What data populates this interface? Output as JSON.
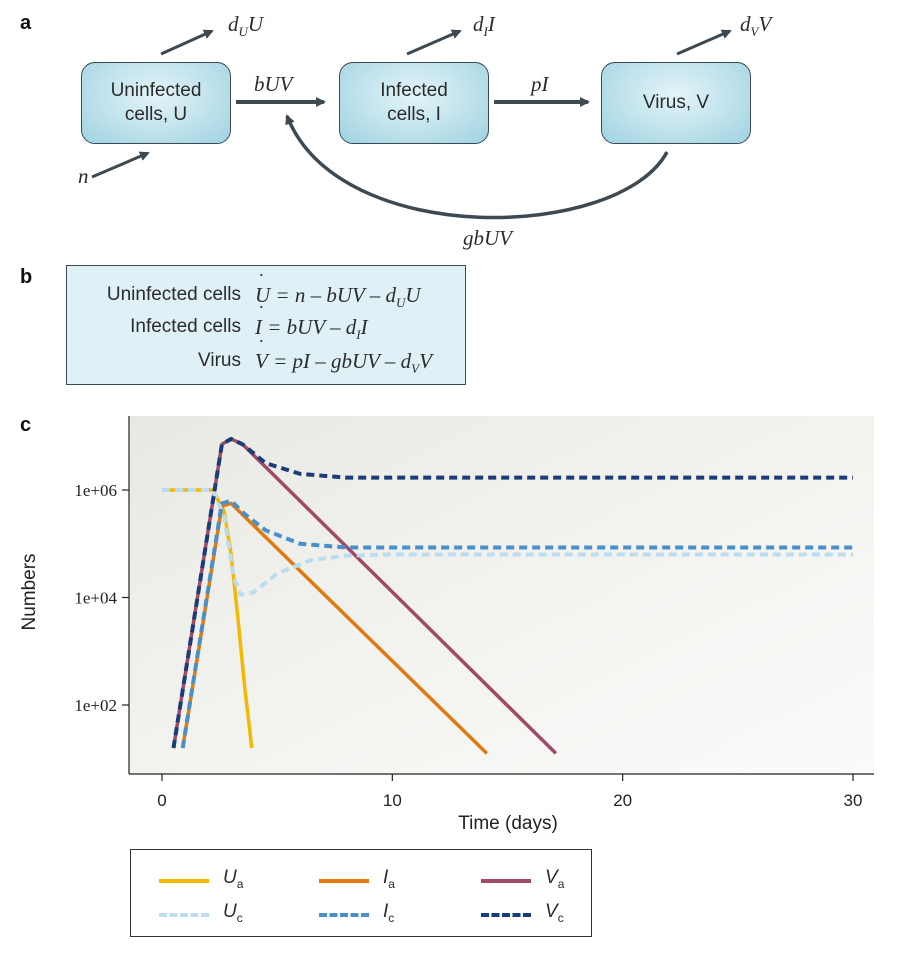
{
  "panels": {
    "a": "a",
    "b": "b",
    "c": "c"
  },
  "diagram": {
    "boxes": {
      "uninfected": "Uninfected\ncells, U",
      "infected": "Infected\ncells, I",
      "virus": "Virus, V"
    },
    "rates": {
      "infection": "bUV",
      "production": "pI",
      "absorption": "gbUV",
      "supply": "n"
    },
    "death_rates": {
      "uninfected": [
        "d",
        "U",
        "U"
      ],
      "infected": [
        "d",
        "I",
        "I"
      ],
      "virus": [
        "d",
        "V",
        "V"
      ]
    }
  },
  "equations": [
    {
      "name": "Uninfected cells",
      "var": "U",
      "rhs": "= n – bUV – d",
      "sub": "U",
      "tail": "U"
    },
    {
      "name": "Infected cells",
      "var": "I",
      "rhs": "= bUV – d",
      "sub": "I",
      "tail": "I"
    },
    {
      "name": "Virus",
      "var": "V",
      "rhs": "= pI – gbUV – d",
      "sub": "V",
      "tail": "V"
    }
  ],
  "chart_data": {
    "type": "line",
    "xlabel": "Time (days)",
    "ylabel": "Numbers",
    "x_ticks": [
      0,
      10,
      20,
      30
    ],
    "y_ticks": [
      {
        "value": 100,
        "label": "1e+02"
      },
      {
        "value": 10000,
        "label": "1e+04"
      },
      {
        "value": 1000000,
        "label": "1e+06"
      }
    ],
    "y_scale": "log10",
    "xlim": [
      -1.4,
      31
    ],
    "ylim_log10": [
      0.68,
      4.37
    ],
    "series": [
      {
        "name": "U",
        "sub": "a",
        "color": "#f5b800",
        "dash": false,
        "x": [
          0,
          2.2,
          2.7,
          3.0,
          3.3,
          3.6,
          3.9
        ],
        "y": [
          6.0,
          6.0,
          5.6,
          4.8,
          3.6,
          2.3,
          1.2
        ]
      },
      {
        "name": "I",
        "sub": "a",
        "color": "#e07a10",
        "dash": false,
        "x": [
          0.9,
          2.6,
          3.0,
          14.1
        ],
        "y": [
          1.2,
          5.7,
          5.75,
          1.1
        ]
      },
      {
        "name": "V",
        "sub": "a",
        "color": "#a04b66",
        "dash": false,
        "x": [
          0.5,
          2.6,
          3.0,
          3.5,
          17.1
        ],
        "y": [
          1.2,
          6.85,
          6.95,
          6.85,
          1.1
        ]
      },
      {
        "name": "U",
        "sub": "c",
        "color": "#bcdcef",
        "dash": true,
        "x": [
          0,
          2.2,
          2.7,
          3.1,
          3.4,
          4.0,
          5.0,
          6.5,
          8.0,
          10.0,
          30.0
        ],
        "y": [
          6.0,
          6.0,
          5.5,
          4.4,
          4.05,
          4.1,
          4.45,
          4.7,
          4.78,
          4.8,
          4.8
        ]
      },
      {
        "name": "I",
        "sub": "c",
        "color": "#4a90c8",
        "dash": true,
        "x": [
          0.9,
          2.6,
          3.0,
          3.6,
          4.5,
          6.0,
          8.0,
          10.0,
          30.0
        ],
        "y": [
          1.2,
          5.75,
          5.8,
          5.55,
          5.25,
          5.0,
          4.93,
          4.93,
          4.93
        ]
      },
      {
        "name": "V",
        "sub": "c",
        "color": "#1a3d7a",
        "dash": true,
        "x": [
          0.5,
          2.6,
          3.0,
          3.5,
          4.5,
          6.0,
          8.0,
          10.0,
          30.0
        ],
        "y": [
          1.2,
          6.85,
          6.95,
          6.85,
          6.5,
          6.3,
          6.23,
          6.23,
          6.23
        ]
      }
    ]
  }
}
